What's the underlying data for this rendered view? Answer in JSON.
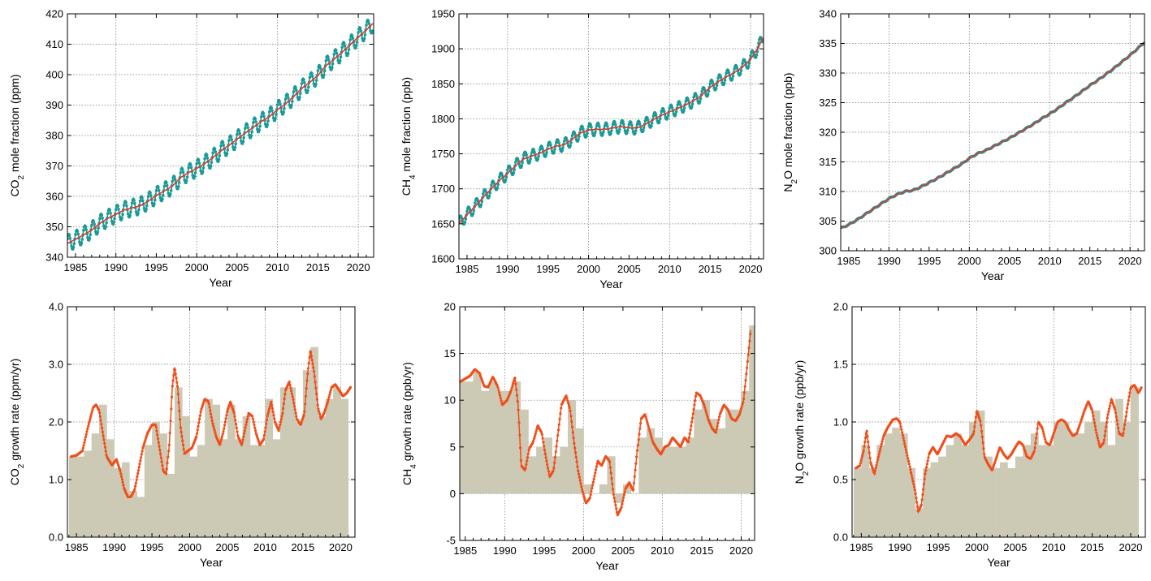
{
  "colors": {
    "monthly": "#1a9a96",
    "trend": "#e8362a",
    "growth_line": "#f04e1a",
    "bar": "#ccc9b4",
    "grid": "#777777"
  },
  "chart_data": [
    {
      "type": "line",
      "xlabel": "Year",
      "ylabel": "CO2 mole fraction (ppm)",
      "ylabel_parts": {
        "pre": "CO",
        "sub": "2",
        "post": " mole fraction (ppm)"
      },
      "xlim": [
        1984,
        2021.9
      ],
      "ylim": [
        340,
        420
      ],
      "xticks": [
        1985,
        1990,
        1995,
        2000,
        2005,
        2010,
        2015,
        2020
      ],
      "yticks": [
        340,
        350,
        360,
        370,
        380,
        390,
        400,
        410,
        420
      ],
      "trend_x": [
        1984,
        1985,
        1986,
        1987,
        1988,
        1989,
        1990,
        1991,
        1992,
        1993,
        1994,
        1995,
        1996,
        1997,
        1998,
        1999,
        2000,
        2001,
        2002,
        2003,
        2004,
        2005,
        2006,
        2007,
        2008,
        2009,
        2010,
        2011,
        2012,
        2013,
        2014,
        2015,
        2016,
        2017,
        2018,
        2019,
        2020,
        2021,
        2021.8
      ],
      "trend_y": [
        344.5,
        345.9,
        347.3,
        348.9,
        351.1,
        352.8,
        354.1,
        355.5,
        356.2,
        356.9,
        358.4,
        360.3,
        361.8,
        363.4,
        366.2,
        367.8,
        369.2,
        370.8,
        372.7,
        375.0,
        376.8,
        378.8,
        380.8,
        382.7,
        384.6,
        386.2,
        388.5,
        390.4,
        392.8,
        395.5,
        397.5,
        399.7,
        403.0,
        405.1,
        407.4,
        409.9,
        412.3,
        414.7,
        416.8
      ],
      "seasonal_amplitude": 2.8
    },
    {
      "type": "line",
      "xlabel": "Year",
      "ylabel": "CH4 mole fraction (ppb)",
      "ylabel_parts": {
        "pre": "CH",
        "sub": "4",
        "post": " mole fraction (ppb)"
      },
      "xlim": [
        1984,
        2021.6
      ],
      "ylim": [
        1600,
        1950
      ],
      "xticks": [
        1985,
        1990,
        1995,
        2000,
        2005,
        2010,
        2015,
        2020
      ],
      "yticks": [
        1600,
        1650,
        1700,
        1750,
        1800,
        1850,
        1900,
        1950
      ],
      "trend_x": [
        1984,
        1985,
        1986,
        1987,
        1988,
        1989,
        1990,
        1991,
        1992,
        1993,
        1994,
        1995,
        1996,
        1997,
        1998,
        1999,
        2000,
        2001,
        2002,
        2003,
        2004,
        2005,
        2006,
        2007,
        2008,
        2009,
        2010,
        2011,
        2012,
        2013,
        2014,
        2015,
        2016,
        2017,
        2018,
        2019,
        2020,
        2021,
        2021.5
      ],
      "trend_y": [
        1650,
        1663,
        1675,
        1688,
        1700,
        1712,
        1722,
        1733,
        1743,
        1747,
        1751,
        1757,
        1761,
        1763,
        1771,
        1780,
        1784,
        1785,
        1785,
        1787,
        1789,
        1787,
        1787,
        1792,
        1799,
        1805,
        1810,
        1815,
        1820,
        1826,
        1834,
        1845,
        1853,
        1860,
        1866,
        1874,
        1885,
        1903,
        1915
      ],
      "seasonal_amplitude": 9
    },
    {
      "type": "line",
      "xlabel": "Year",
      "ylabel": "N2O mole fraction (ppb)",
      "ylabel_parts": {
        "pre": "N",
        "sub": "2",
        "post": "O mole fraction (ppb)"
      },
      "xlim": [
        1984,
        2021.8
      ],
      "ylim": [
        300,
        340
      ],
      "xticks": [
        1985,
        1990,
        1995,
        2000,
        2005,
        2010,
        2015,
        2020
      ],
      "yticks": [
        300,
        305,
        310,
        315,
        320,
        325,
        330,
        335,
        340
      ],
      "trend_x": [
        1984,
        1985,
        1986,
        1987,
        1988,
        1989,
        1990,
        1991,
        1992,
        1993,
        1994,
        1995,
        1996,
        1997,
        1998,
        1999,
        2000,
        2001,
        2002,
        2003,
        2004,
        2005,
        2006,
        2007,
        2008,
        2009,
        2010,
        2011,
        2012,
        2013,
        2014,
        2015,
        2016,
        2017,
        2018,
        2019,
        2020,
        2021,
        2021.8
      ],
      "trend_y": [
        303.8,
        304.4,
        305.2,
        306.1,
        307.0,
        307.9,
        308.8,
        309.5,
        310.0,
        310.2,
        310.8,
        311.5,
        312.2,
        313.0,
        313.8,
        314.6,
        315.6,
        316.4,
        316.9,
        317.6,
        318.3,
        319.0,
        319.8,
        320.6,
        321.4,
        322.3,
        323.1,
        324.0,
        325.0,
        325.9,
        326.9,
        327.9,
        328.8,
        329.8,
        330.8,
        331.9,
        333.0,
        334.2,
        335.2
      ],
      "seasonal_amplitude": 0.1
    },
    {
      "type": "bar",
      "xlabel": "Year",
      "ylabel": "CO2 growth rate (ppm/yr)",
      "ylabel_parts": {
        "pre": "CO",
        "sub": "2",
        "post": " growth rate (ppm/yr)"
      },
      "xlim": [
        1983.8,
        2021.9
      ],
      "ylim": [
        0,
        4
      ],
      "xticks": [
        1985,
        1990,
        1995,
        2000,
        2005,
        2010,
        2015,
        2020
      ],
      "yticks": [
        0,
        1,
        2,
        3,
        4
      ],
      "ytick_labels": [
        "0.0",
        "1.0",
        "2.0",
        "3.0",
        "4.0"
      ],
      "bar_years": [
        1984,
        1985,
        1986,
        1987,
        1988,
        1989,
        1990,
        1991,
        1992,
        1993,
        1994,
        1995,
        1996,
        1997,
        1998,
        1999,
        2000,
        2001,
        2002,
        2003,
        2004,
        2005,
        2006,
        2007,
        2008,
        2009,
        2010,
        2011,
        2012,
        2013,
        2014,
        2015,
        2016,
        2017,
        2018,
        2019,
        2020
      ],
      "bar_values": [
        1.4,
        1.4,
        1.5,
        1.8,
        2.3,
        1.7,
        1.2,
        1.3,
        0.8,
        0.7,
        1.6,
        2.0,
        1.8,
        1.1,
        2.6,
        2.1,
        1.4,
        1.6,
        2.4,
        2.3,
        1.7,
        2.3,
        1.7,
        2.1,
        1.6,
        1.6,
        2.4,
        1.7,
        2.6,
        2.6,
        2.0,
        2.9,
        3.3,
        2.1,
        2.4,
        2.6,
        2.4
      ],
      "line_x": [
        1984.3,
        1985.0,
        1985.8,
        1986.5,
        1987.2,
        1987.6,
        1988.0,
        1988.5,
        1989.0,
        1989.7,
        1990.3,
        1990.8,
        1991.3,
        1991.8,
        1992.2,
        1992.7,
        1993.2,
        1993.8,
        1994.4,
        1995.0,
        1995.5,
        1996.0,
        1996.5,
        1996.9,
        1997.3,
        1997.7,
        1998.0,
        1998.4,
        1998.8,
        1999.3,
        1999.8,
        2000.3,
        2000.9,
        2001.5,
        2002.0,
        2002.5,
        2003.0,
        2003.5,
        2004.0,
        2004.5,
        2005.0,
        2005.4,
        2005.9,
        2006.4,
        2006.9,
        2007.3,
        2007.8,
        2008.3,
        2008.8,
        2009.3,
        2009.8,
        2010.3,
        2010.8,
        2011.3,
        2011.8,
        2012.3,
        2012.7,
        2013.2,
        2013.7,
        2014.2,
        2014.7,
        2015.2,
        2015.6,
        2016.0,
        2016.5,
        2017.0,
        2017.4,
        2017.8,
        2018.3,
        2018.8,
        2019.3,
        2019.8,
        2020.3,
        2020.8,
        2021.3
      ],
      "line_y": [
        1.4,
        1.42,
        1.5,
        1.9,
        2.25,
        2.3,
        2.2,
        1.8,
        1.4,
        1.25,
        1.35,
        1.15,
        0.85,
        0.7,
        0.7,
        0.82,
        1.15,
        1.55,
        1.8,
        1.95,
        1.95,
        1.55,
        1.15,
        1.1,
        1.6,
        2.6,
        2.95,
        2.6,
        1.9,
        1.45,
        1.5,
        1.55,
        1.75,
        2.2,
        2.4,
        2.35,
        2.0,
        1.75,
        1.6,
        1.85,
        2.2,
        2.35,
        2.15,
        1.75,
        1.6,
        1.85,
        2.15,
        2.1,
        1.8,
        1.6,
        1.7,
        2.1,
        2.35,
        2.0,
        1.85,
        2.15,
        2.55,
        2.7,
        2.4,
        2.05,
        1.95,
        2.15,
        2.8,
        3.25,
        2.85,
        2.25,
        2.05,
        2.15,
        2.35,
        2.6,
        2.65,
        2.55,
        2.45,
        2.5,
        2.6
      ]
    },
    {
      "type": "bar",
      "xlabel": "Year",
      "ylabel": "CH4 growth rate (ppb/yr)",
      "ylabel_parts": {
        "pre": "CH",
        "sub": "4",
        "post": " growth rate (ppb/yr)"
      },
      "xlim": [
        1984.3,
        2021.7
      ],
      "ylim": [
        -5,
        20
      ],
      "xticks": [
        1985,
        1990,
        1995,
        2000,
        2005,
        2010,
        2015,
        2020
      ],
      "yticks": [
        -5,
        0,
        5,
        10,
        15,
        20
      ],
      "ytick_labels": [
        "-5",
        "0",
        "5",
        "10",
        "15",
        "20"
      ],
      "bar_years": [
        1984,
        1985,
        1986,
        1987,
        1988,
        1989,
        1990,
        1991,
        1992,
        1993,
        1994,
        1995,
        1996,
        1997,
        1998,
        1999,
        2000,
        2001,
        2002,
        2003,
        2004,
        2005,
        2006,
        2007,
        2008,
        2009,
        2010,
        2011,
        2012,
        2013,
        2014,
        2015,
        2016,
        2017,
        2018,
        2019,
        2020
      ],
      "bar_values": [
        12,
        12,
        13,
        11,
        12,
        11,
        11,
        12,
        9,
        4,
        5,
        6,
        4,
        5,
        10,
        7,
        1,
        0,
        1,
        4,
        -1,
        1,
        0,
        6,
        7,
        6,
        5,
        5,
        5,
        6,
        9,
        10,
        8,
        7,
        9,
        9,
        11
      ],
      "extra_bar": {
        "year": 2021,
        "value": 18
      },
      "line_x": [
        1984.4,
        1985.0,
        1985.6,
        1986.2,
        1986.8,
        1987.4,
        1987.9,
        1988.5,
        1989.1,
        1989.7,
        1990.3,
        1990.8,
        1991.3,
        1991.7,
        1992.1,
        1992.6,
        1993.1,
        1993.6,
        1994.2,
        1994.7,
        1995.2,
        1995.7,
        1996.2,
        1996.7,
        1997.2,
        1997.8,
        1998.3,
        1998.8,
        1999.3,
        1999.8,
        2000.3,
        2000.8,
        2001.3,
        2001.8,
        2002.3,
        2002.8,
        2003.3,
        2003.8,
        2004.3,
        2004.8,
        2005.3,
        2005.8,
        2006.3,
        2006.8,
        2007.3,
        2007.8,
        2008.3,
        2008.8,
        2009.3,
        2009.8,
        2010.3,
        2010.8,
        2011.3,
        2011.8,
        2012.3,
        2012.8,
        2013.3,
        2013.8,
        2014.3,
        2014.8,
        2015.3,
        2015.8,
        2016.3,
        2016.8,
        2017.3,
        2017.8,
        2018.3,
        2018.8,
        2019.3,
        2019.8,
        2020.3,
        2020.8,
        2021.2
      ],
      "line_y": [
        12,
        12.3,
        12.6,
        13.3,
        12.9,
        11.5,
        11.4,
        12.5,
        11.5,
        9.5,
        10,
        11,
        12.5,
        9.5,
        3,
        2.5,
        4.8,
        5.5,
        7.3,
        6.5,
        4,
        1.8,
        2.5,
        6,
        9.5,
        10.5,
        9,
        5.5,
        2.5,
        0.5,
        -1,
        -0.5,
        1.5,
        3.5,
        3,
        4,
        3.5,
        0,
        -2.3,
        -1.5,
        0.5,
        1.2,
        0.3,
        4.5,
        8,
        8.5,
        7,
        5.5,
        4.8,
        4.2,
        5,
        5.2,
        6,
        5.5,
        5,
        6,
        5.5,
        8,
        10.8,
        10.5,
        9.5,
        8,
        7,
        6.5,
        8.5,
        9.5,
        9,
        8,
        7.8,
        8.5,
        10,
        14,
        17.5
      ]
    },
    {
      "type": "bar",
      "xlabel": "Year",
      "ylabel": "N2O growth rate (ppb/yr)",
      "ylabel_parts": {
        "pre": "N",
        "sub": "2",
        "post": "O growth rate (ppb/yr)"
      },
      "xlim": [
        1983.8,
        2021.9
      ],
      "ylim": [
        0,
        2
      ],
      "xticks": [
        1985,
        1990,
        1995,
        2000,
        2005,
        2010,
        2015,
        2020
      ],
      "yticks": [
        0,
        0.5,
        1,
        1.5,
        2
      ],
      "ytick_labels": [
        "0.0",
        "0.5",
        "1.0",
        "1.5",
        "2.0"
      ],
      "bar_years": [
        1984,
        1985,
        1986,
        1987,
        1988,
        1989,
        1990,
        1991,
        1992,
        1993,
        1994,
        1995,
        1996,
        1997,
        1998,
        1999,
        2000,
        2001,
        2002,
        2003,
        2004,
        2005,
        2006,
        2007,
        2008,
        2009,
        2010,
        2011,
        2012,
        2013,
        2014,
        2015,
        2016,
        2017,
        2018,
        2019,
        2020
      ],
      "bar_values": [
        0.6,
        0.8,
        0.6,
        0.8,
        0.9,
        0.95,
        0.9,
        0.6,
        0.25,
        0.6,
        0.65,
        0.7,
        0.8,
        0.9,
        0.8,
        1.0,
        1.1,
        0.7,
        0.6,
        0.65,
        0.6,
        0.7,
        0.8,
        0.9,
        0.8,
        0.8,
        1.0,
        1.0,
        0.9,
        0.9,
        1.0,
        1.1,
        1.0,
        0.8,
        1.2,
        1.0,
        1.3
      ],
      "line_x": [
        1984.3,
        1984.8,
        1985.3,
        1985.7,
        1986.2,
        1986.7,
        1987.3,
        1987.9,
        1988.5,
        1989.1,
        1989.6,
        1990.0,
        1990.5,
        1991.0,
        1991.5,
        1992.0,
        1992.4,
        1992.8,
        1993.3,
        1993.8,
        1994.3,
        1994.9,
        1995.5,
        1996.1,
        1996.7,
        1997.3,
        1997.9,
        1998.5,
        1999.1,
        1999.6,
        2000.0,
        2000.5,
        2001.0,
        2001.5,
        2002.0,
        2002.5,
        2003.0,
        2003.5,
        2004.0,
        2004.5,
        2005.0,
        2005.5,
        2006.0,
        2006.5,
        2007.0,
        2007.5,
        2008.0,
        2008.5,
        2009.0,
        2009.5,
        2010.0,
        2010.5,
        2011.0,
        2011.5,
        2012.0,
        2012.5,
        2013.0,
        2013.5,
        2014.0,
        2014.5,
        2015.0,
        2015.5,
        2016.0,
        2016.5,
        2017.0,
        2017.5,
        2018.0,
        2018.5,
        2019.0,
        2019.5,
        2020.0,
        2020.5,
        2021.0,
        2021.4
      ],
      "line_y": [
        0.6,
        0.62,
        0.75,
        0.93,
        0.65,
        0.55,
        0.72,
        0.88,
        0.96,
        1.02,
        1.03,
        1.0,
        0.85,
        0.7,
        0.55,
        0.4,
        0.22,
        0.28,
        0.55,
        0.72,
        0.78,
        0.72,
        0.8,
        0.88,
        0.87,
        0.9,
        0.87,
        0.8,
        0.85,
        0.9,
        1.1,
        1.0,
        0.7,
        0.63,
        0.58,
        0.68,
        0.78,
        0.72,
        0.68,
        0.72,
        0.78,
        0.83,
        0.8,
        0.7,
        0.68,
        0.75,
        1.0,
        0.95,
        0.82,
        0.8,
        0.9,
        1.0,
        1.02,
        1.0,
        0.93,
        0.88,
        0.9,
        1.0,
        1.1,
        1.18,
        1.1,
        0.92,
        0.78,
        0.82,
        1.05,
        1.2,
        1.1,
        0.9,
        0.88,
        1.1,
        1.3,
        1.32,
        1.25,
        1.3
      ]
    }
  ]
}
